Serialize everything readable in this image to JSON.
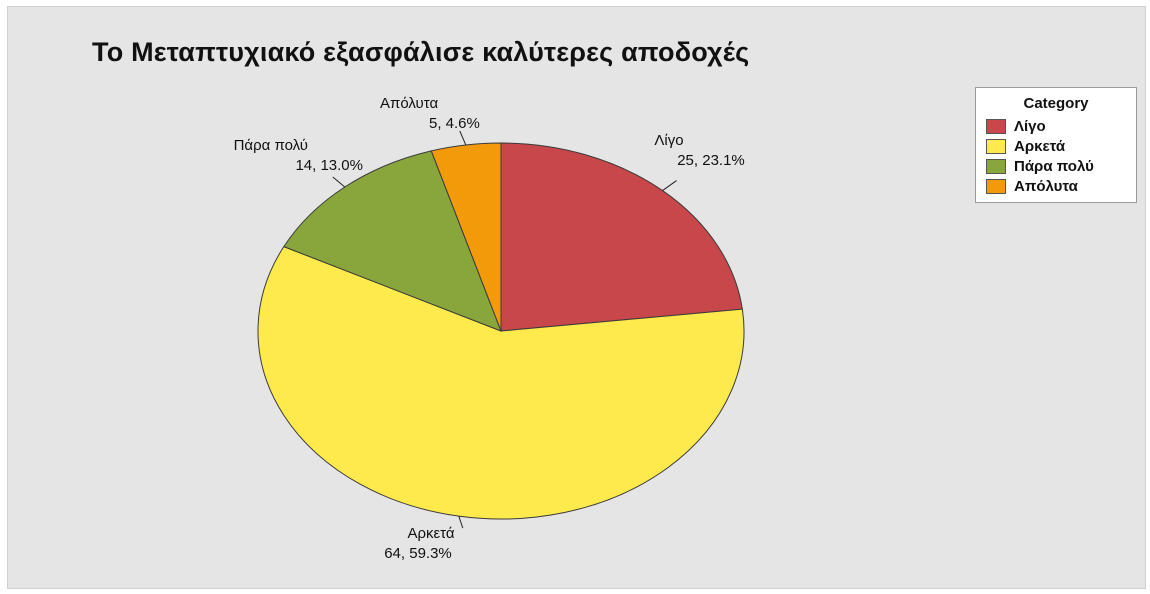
{
  "chart_data": {
    "type": "pie",
    "title": "Το Μεταπτυχιακό εξασφάλισε καλύτερες αποδοχές",
    "legend_title": "Category",
    "legend_position": "top-right",
    "slices": [
      {
        "name": "Λίγο",
        "value": 25,
        "percent": "23.1%",
        "label": "25, 23.1%",
        "color": "#c8474a"
      },
      {
        "name": "Αρκετά",
        "value": 64,
        "percent": "59.3%",
        "label": "64, 59.3%",
        "color": "#ffea4d"
      },
      {
        "name": "Πάρα πολύ",
        "value": 14,
        "percent": "13.0%",
        "label": "14, 13.0%",
        "color": "#89a63c"
      },
      {
        "name": "Απόλυτα",
        "value": 5,
        "percent": "4.6%",
        "label": "5, 4.6%",
        "color": "#f39a0b"
      }
    ]
  }
}
